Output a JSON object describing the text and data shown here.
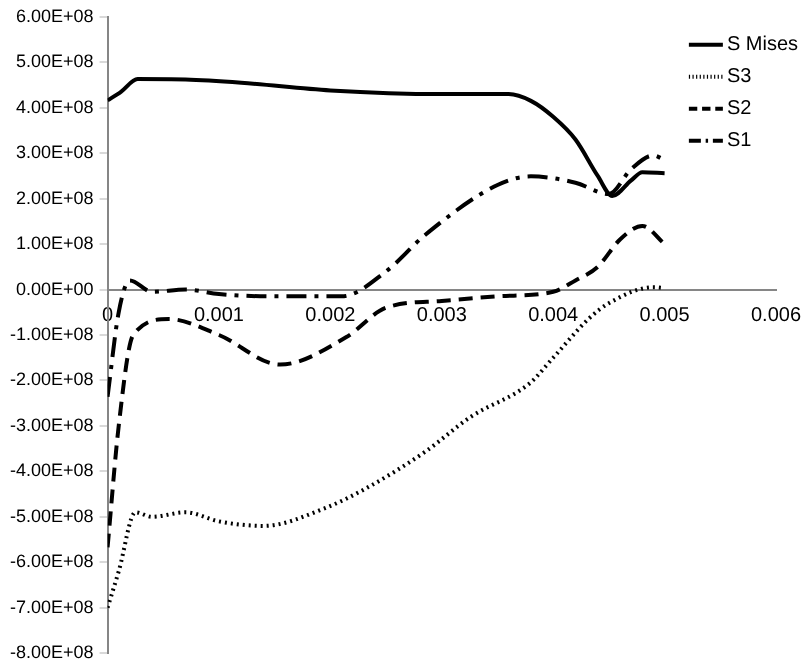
{
  "chart_data": {
    "type": "line",
    "xlim": [
      0,
      0.006
    ],
    "xticks": [
      0,
      0.001,
      0.002,
      0.003,
      0.004,
      0.005,
      0.006
    ],
    "ylim": [
      -800000000,
      600000000
    ],
    "yticks": [
      {
        "value": -800000000,
        "label": "-8.00E+08"
      },
      {
        "value": -700000000,
        "label": "-7.00E+08"
      },
      {
        "value": -600000000,
        "label": "-6.00E+08"
      },
      {
        "value": -500000000,
        "label": "-5.00E+08"
      },
      {
        "value": -400000000,
        "label": "-4.00E+08"
      },
      {
        "value": -300000000,
        "label": "-3.00E+08"
      },
      {
        "value": -200000000,
        "label": "-2.00E+08"
      },
      {
        "value": -100000000,
        "label": "-1.00E+08"
      },
      {
        "value": 0,
        "label": "0.00E+00"
      },
      {
        "value": 100000000,
        "label": "1.00E+08"
      },
      {
        "value": 200000000,
        "label": "2.00E+08"
      },
      {
        "value": 300000000,
        "label": "3.00E+08"
      },
      {
        "value": 400000000,
        "label": "4.00E+08"
      },
      {
        "value": 500000000,
        "label": "5.00E+08"
      },
      {
        "value": 600000000,
        "label": "6.00E+08"
      }
    ],
    "grid": false,
    "legend": "top right",
    "marker": "none",
    "series": [
      {
        "name": "S Mises",
        "color": "#000000",
        "line_style": "solid",
        "x": [
          0,
          0.00012,
          0.00027,
          0.0007,
          0.0012,
          0.002,
          0.003,
          0.0036,
          0.0038,
          0.004,
          0.0042,
          0.0044,
          0.00453,
          0.0047,
          0.0048,
          0.005
        ],
        "values": [
          416000000,
          435000000,
          463000000,
          462000000,
          455000000,
          438000000,
          430000000,
          430000000,
          415000000,
          380000000,
          330000000,
          250000000,
          206000000,
          240000000,
          258000000,
          256000000
        ]
      },
      {
        "name": "S3",
        "color": "#000000",
        "line_style": "dotted",
        "x": [
          0,
          0.0001,
          0.00025,
          0.0004,
          0.0007,
          0.001,
          0.0014,
          0.00196,
          0.0023,
          0.00285,
          0.00326,
          0.00379,
          0.004,
          0.00432,
          0.0045,
          0.0049,
          0.005
        ],
        "values": [
          -700000000,
          -620000000,
          -490000000,
          -500000000,
          -490000000,
          -510000000,
          -520000000,
          -480000000,
          -440000000,
          -357000000,
          -280000000,
          -206000000,
          -150000000,
          -64000000,
          -30000000,
          5000000,
          3000000
        ]
      },
      {
        "name": "S2",
        "color": "#000000",
        "line_style": "dashed",
        "x": [
          0,
          0.0001,
          0.00023,
          0.00055,
          0.001,
          0.00155,
          0.00214,
          0.0025,
          0.003,
          0.0035,
          0.004,
          0.0042,
          0.0044,
          0.0046,
          0.0048,
          0.005
        ],
        "values": [
          -567000000,
          -300000000,
          -100000000,
          -65000000,
          -100000000,
          -165000000,
          -105000000,
          -40000000,
          -25000000,
          -15000000,
          -5000000,
          20000000,
          50000000,
          110000000,
          140000000,
          100000000
        ]
      },
      {
        "name": "S1",
        "color": "#000000",
        "line_style": "dashdot",
        "x": [
          0,
          0.0001,
          0.0002,
          0.0004,
          0.0007,
          0.001,
          0.0015,
          0.0021,
          0.0025,
          0.00285,
          0.0035,
          0.0038,
          0.0042,
          0.0045,
          0.0047,
          0.0049,
          0.005
        ],
        "values": [
          -236000000,
          -50000000,
          20000000,
          -5000000,
          0,
          -10000000,
          -15000000,
          -15000000,
          40000000,
          120000000,
          230000000,
          249000000,
          235000000,
          210000000,
          265000000,
          295000000,
          285000000
        ]
      }
    ]
  }
}
